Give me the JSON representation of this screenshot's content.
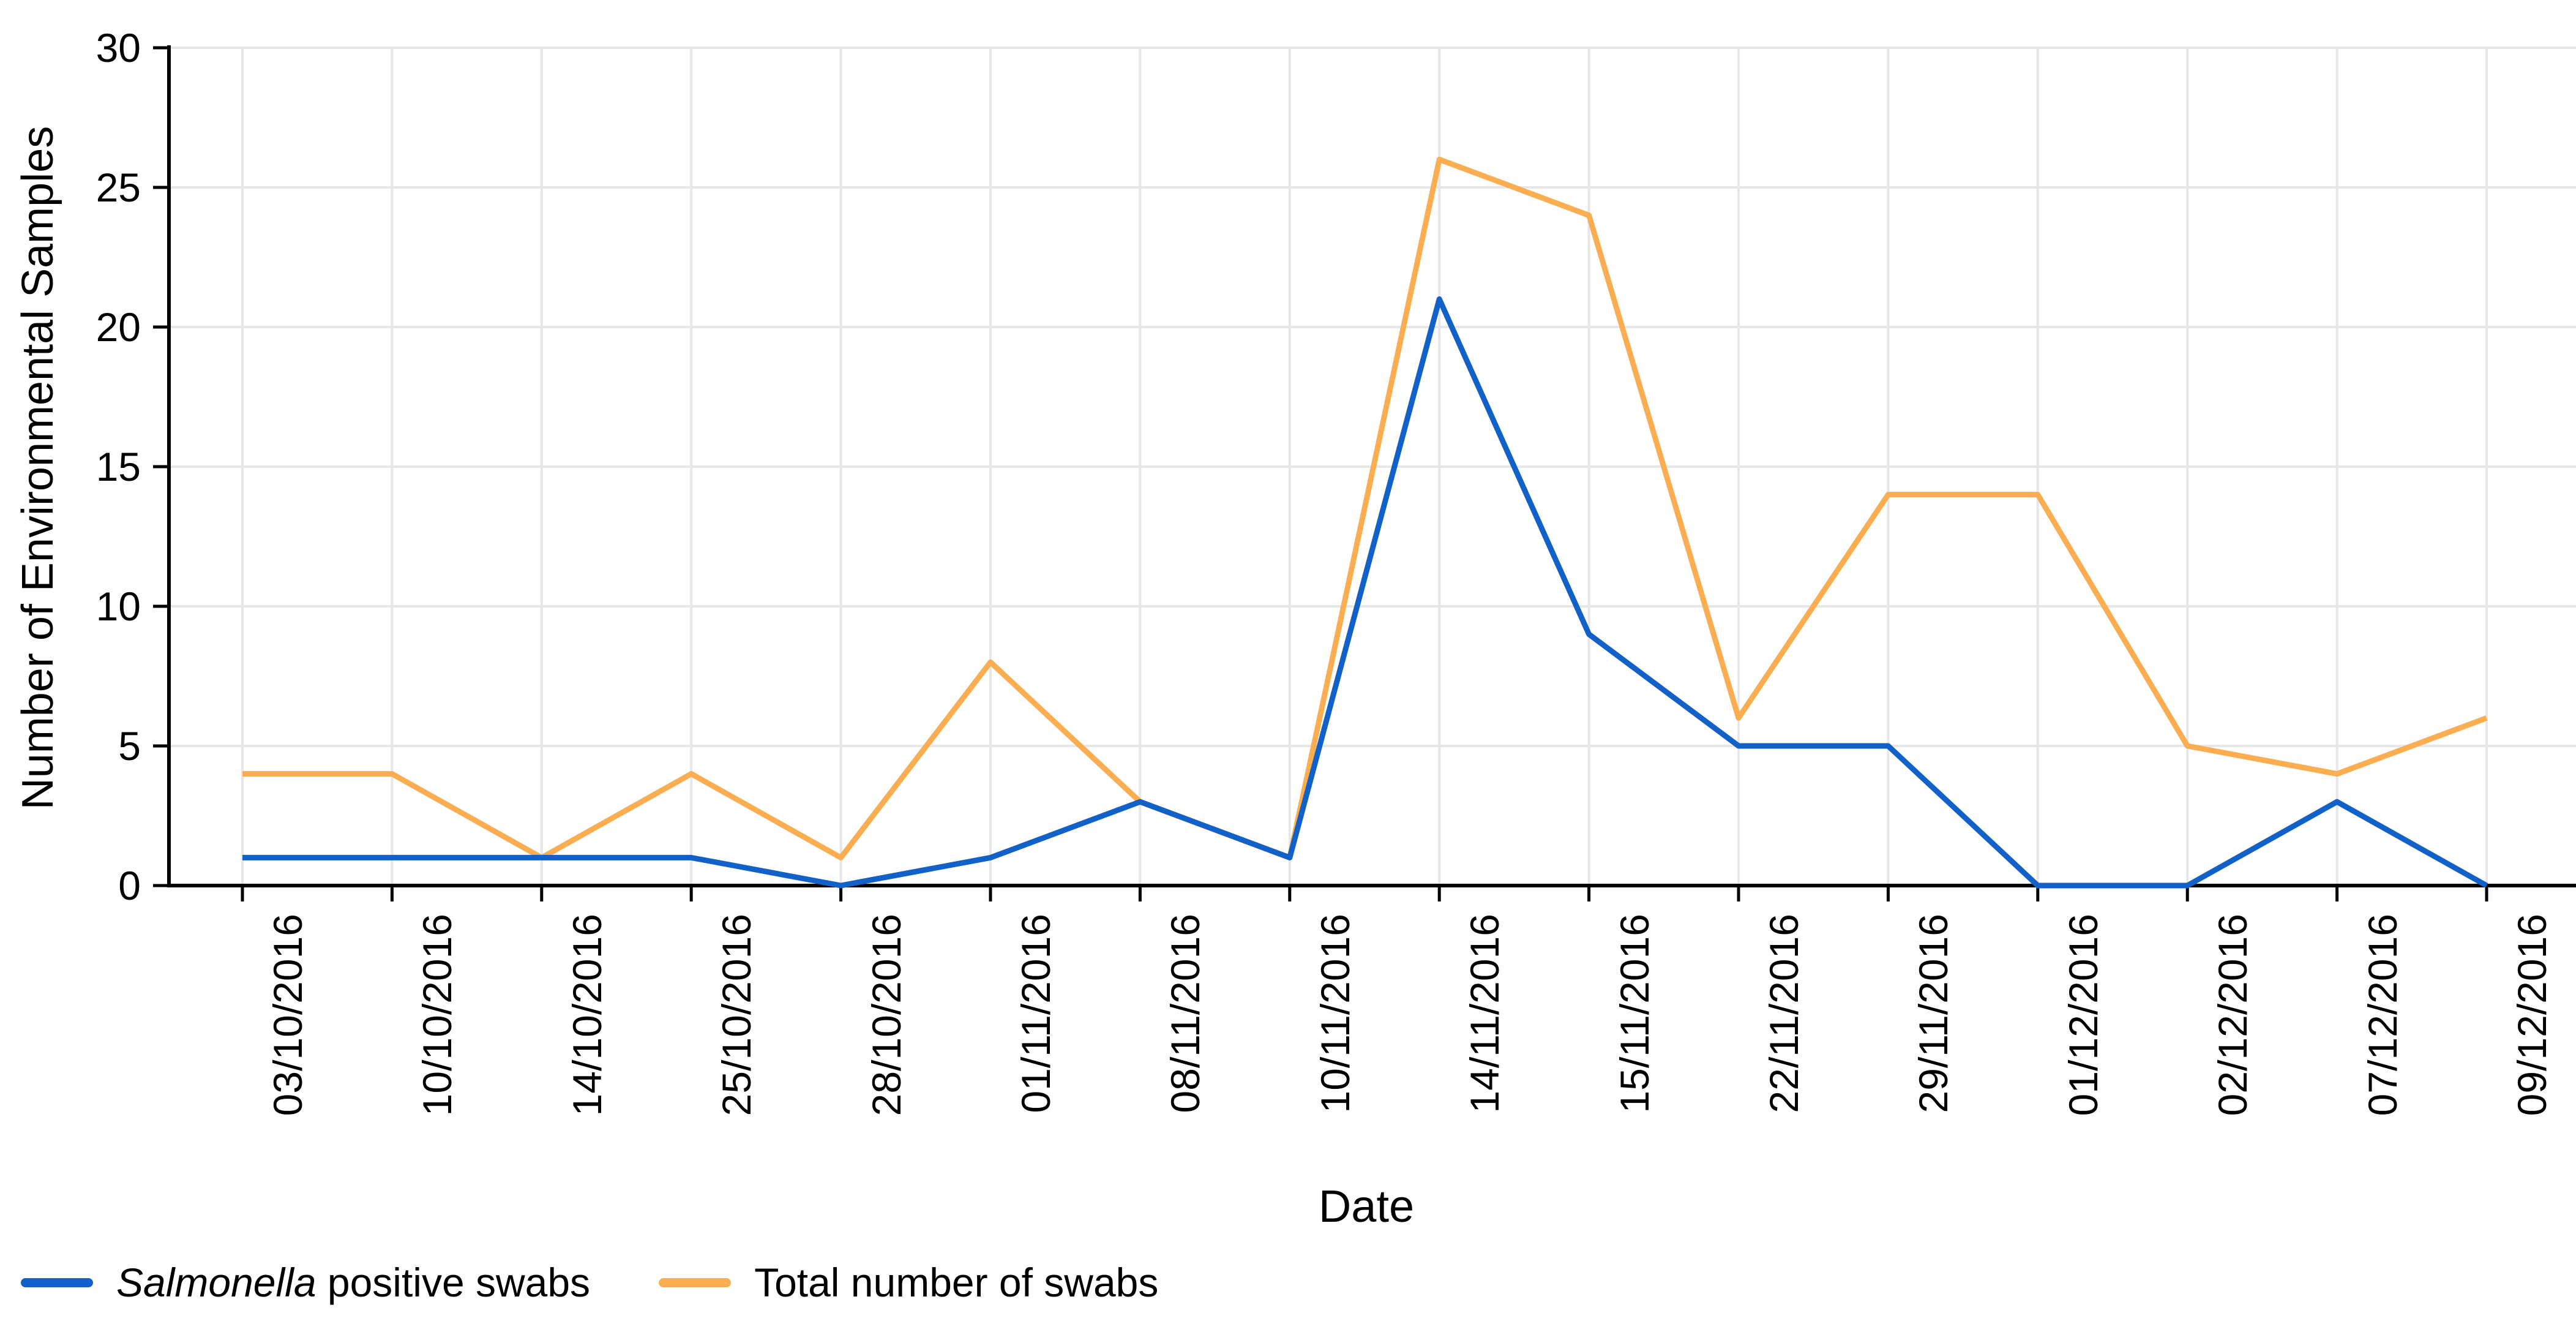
{
  "chart_data": {
    "type": "line",
    "title": "",
    "xlabel": "Date",
    "ylabel": "Number of Environmental Samples",
    "ylim": [
      0,
      30
    ],
    "ytick_step": 5,
    "grid": true,
    "legend_position": "bottom-left",
    "categories": [
      "03/10/2016",
      "10/10/2016",
      "14/10/2016",
      "25/10/2016",
      "28/10/2016",
      "01/11/2016",
      "08/11/2016",
      "10/11/2016",
      "14/11/2016",
      "15/11/2016",
      "22/11/2016",
      "29/11/2016",
      "01/12/2016",
      "02/12/2016",
      "07/12/2016",
      "09/12/2016"
    ],
    "series": [
      {
        "name": "Salmonella positive swabs",
        "name_italic": "Salmonella",
        "name_rest": " positive swabs",
        "color": "#1161c9",
        "values": [
          1,
          1,
          1,
          1,
          0,
          1,
          3,
          1,
          21,
          9,
          5,
          5,
          0,
          0,
          3,
          0
        ]
      },
      {
        "name": "Total number of swabs",
        "name_italic": "",
        "name_rest": "Total number of swabs",
        "color": "#fbad52",
        "values": [
          4,
          4,
          1,
          4,
          1,
          8,
          3,
          1,
          26,
          24,
          6,
          14,
          14,
          5,
          4,
          6
        ]
      }
    ],
    "colors": {
      "axis": "#000000",
      "grid": "#e7e7e7",
      "text": "#000000",
      "background": "#ffffff"
    }
  }
}
